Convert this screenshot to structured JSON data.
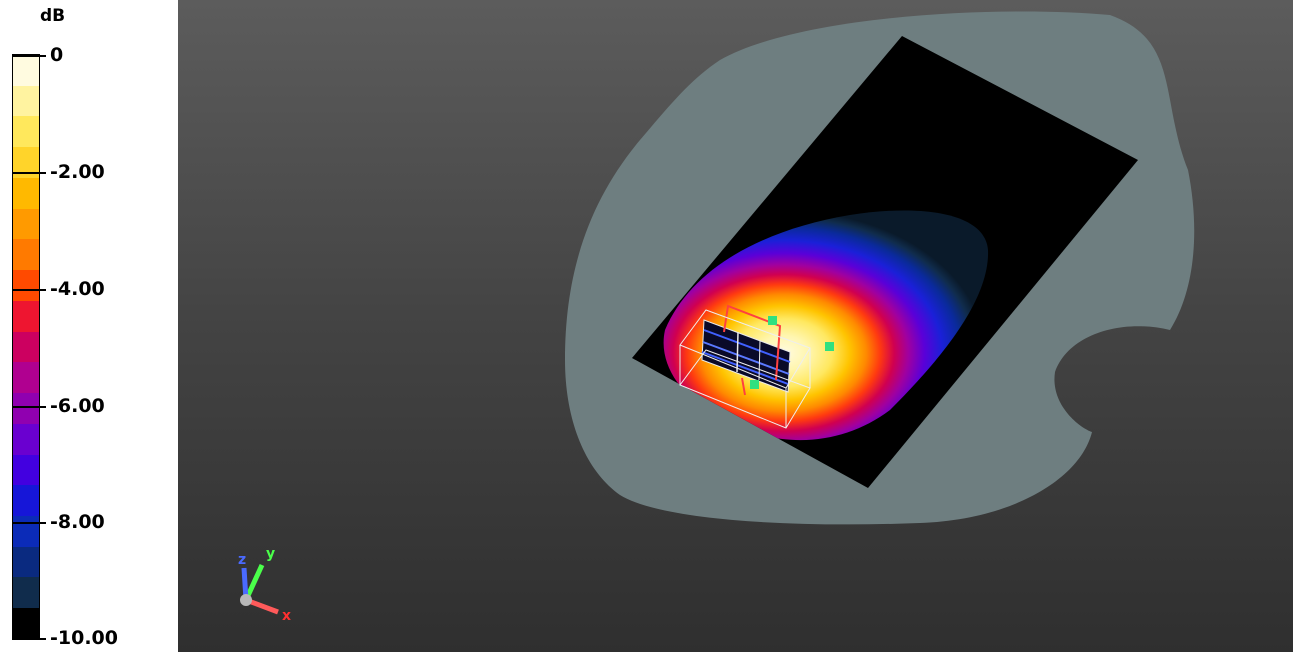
{
  "legend": {
    "unit": "dB",
    "ticks": [
      "0",
      "-2.00",
      "-4.00",
      "-6.00",
      "-8.00",
      "-10.00"
    ],
    "bands": [
      "#fffbe0",
      "#fff3a0",
      "#ffe85c",
      "#ffd42a",
      "#ffb900",
      "#ff9a00",
      "#ff7a00",
      "#ff4a00",
      "#ee1530",
      "#cc0060",
      "#b00090",
      "#9000b0",
      "#6a00d0",
      "#4200e0",
      "#1616d8",
      "#0b2bb8",
      "#0a2a80",
      "#102c4c",
      "#000000"
    ],
    "value_range": [
      -10,
      0
    ]
  },
  "viewport": {
    "background_color": "#444444",
    "ground_color": "#6e7e80",
    "axes": {
      "x": "x",
      "y": "y",
      "z": "z"
    }
  }
}
